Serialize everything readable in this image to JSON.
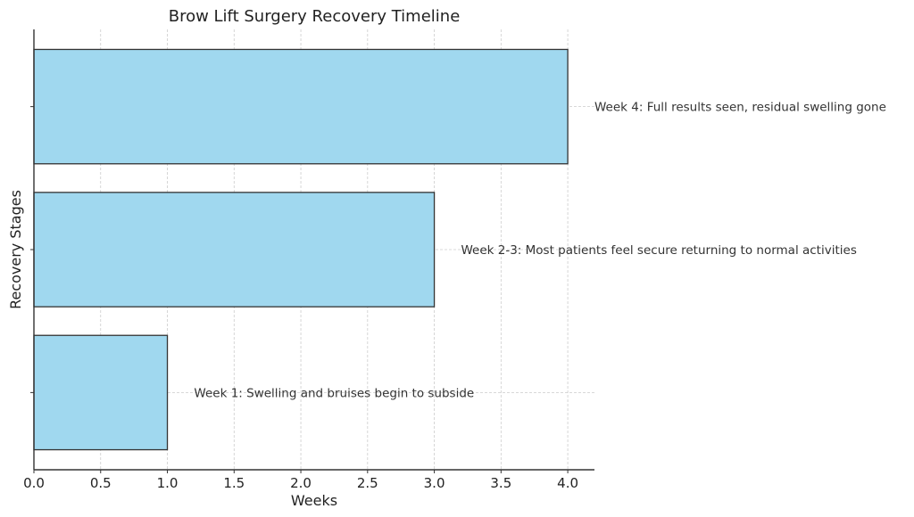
{
  "chart_data": {
    "type": "bar",
    "orientation": "horizontal",
    "title": "Brow Lift Surgery Recovery Timeline",
    "xlabel": "Weeks",
    "ylabel": "Recovery Stages",
    "categories": [
      "Week 1: Swelling and bruises begin to subside",
      "Week 2-3: Most patients feel secure returning to normal activities",
      "Week 4: Full results seen, residual swelling gone"
    ],
    "values": [
      1,
      3,
      4
    ],
    "annotation_offset": 0.2,
    "xlim": [
      0,
      4.2
    ],
    "ylim": [
      -0.54,
      2.54
    ],
    "xticks": [
      "0.0",
      "0.5",
      "1.0",
      "1.5",
      "2.0",
      "2.5",
      "3.0",
      "3.5",
      "4.0"
    ],
    "bar_width": 0.8,
    "grid": true,
    "colors": {
      "bar": "#a0d8ef",
      "edge": "#333333"
    }
  }
}
